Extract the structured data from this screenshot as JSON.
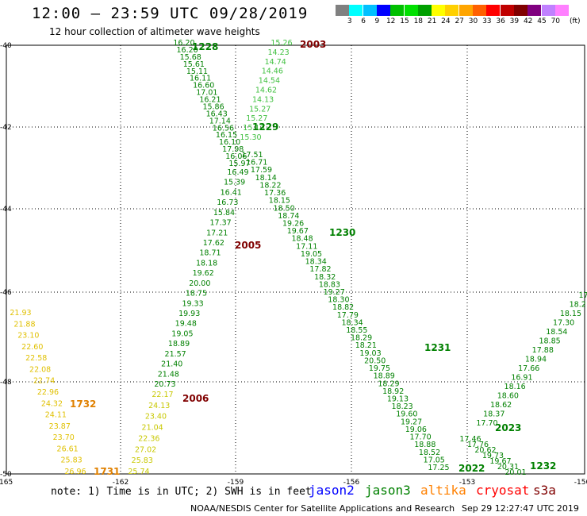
{
  "title": "12:00 – 23:59 UTC 09/28/2019",
  "subtitle": "12 hour collection of altimeter wave heights",
  "legend": {
    "unit": "(ft)",
    "colors": [
      "#808080",
      "#00ffff",
      "#00c0ff",
      "#0000ff",
      "#00c000",
      "#00e000",
      "#00a000",
      "#ffff00",
      "#ffd000",
      "#ffa500",
      "#ff6000",
      "#ff0000",
      "#c00000",
      "#800000",
      "#800080",
      "#c080ff",
      "#ff80ff"
    ],
    "labels": [
      "3",
      "6",
      "9",
      "12",
      "15",
      "18",
      "21",
      "24",
      "27",
      "30",
      "33",
      "36",
      "39",
      "42",
      "45",
      "70"
    ]
  },
  "axes": {
    "lat_labels": [
      "-40",
      "-42",
      "-44",
      "-46",
      "-48",
      "-50"
    ],
    "lon_labels": [
      "-165",
      "-162",
      "-159",
      "-156",
      "-153",
      "-150"
    ]
  },
  "passes": [
    {
      "id": "1228",
      "color": "#008000",
      "label_color": "#008000",
      "values": [
        "16.20",
        "16.20",
        "15.68",
        "15.61",
        "15.11",
        "16.11",
        "16.60",
        "17.01",
        "16.21",
        "15.86",
        "16.43",
        "17.14",
        "16.56",
        "16.15",
        "16.10",
        "17.98",
        "16.06",
        "15.97"
      ]
    },
    {
      "id": "2003",
      "color": "#40c040",
      "label_color": "#800000",
      "values": [
        "15.26",
        "14.23",
        "14.74",
        "14.46",
        "14.54",
        "14.62",
        "14.13",
        "15.27",
        "15.27",
        "15.13",
        "15.30"
      ]
    },
    {
      "id": "1229",
      "color": "#008000",
      "label_color": "#008000",
      "values": [
        "17.51",
        "16.71",
        "17.59",
        "18.14",
        "18.22",
        "17.36",
        "18.15",
        "18.50",
        "18.74",
        "19.26",
        "19.67",
        "18.48",
        "17.11",
        "19.05",
        "18.34",
        "17.82",
        "18.32",
        "18.83",
        "19.27",
        "18.30",
        "18.82",
        "17.79",
        "18.34",
        "18.55",
        "18.29",
        "18.21",
        "19.03",
        "20.50",
        "19.75",
        "18.89",
        "18.29",
        "18.92",
        "19.13",
        "18.23",
        "19.60",
        "19.27",
        "19.06",
        "17.70",
        "18.88",
        "18.52",
        "17.05",
        "17.25"
      ]
    },
    {
      "id": "1230",
      "color": "#008000",
      "label_color": "#008000",
      "values": []
    },
    {
      "id": "1231",
      "color": "#008000",
      "label_color": "#008000",
      "values": []
    },
    {
      "id": "2005",
      "color": "#008000",
      "label_color": "#800000",
      "values": [
        "16.49",
        "15.39",
        "16.41",
        "16.73",
        "15.84",
        "17.37",
        "17.21",
        "17.62",
        "18.71",
        "18.18",
        "19.62",
        "20.00",
        "18.75",
        "19.33",
        "19.93",
        "19.48",
        "19.05",
        "18.89",
        "21.57",
        "21.40",
        "21.48",
        "20.73"
      ]
    },
    {
      "id": "2006",
      "color": "#c8c800",
      "label_color": "#800000",
      "values": [
        "22.17",
        "24.13",
        "23.40",
        "21.04",
        "22.36",
        "27.02",
        "25.83",
        "25.74"
      ]
    },
    {
      "id": "1732",
      "color": "#e0c000",
      "label_color": "#e08000",
      "values": [
        "21.93",
        "21.88",
        "23.10",
        "22.60",
        "22.58",
        "22.08",
        "22.74",
        "22.96",
        "24.32",
        "24.11",
        "23.87",
        "23.70",
        "26.61",
        "25.83",
        "26.96"
      ]
    },
    {
      "id": "1731",
      "color": "#e0c000",
      "label_color": "#e08000",
      "values": []
    },
    {
      "id": "2022",
      "color": "#008000",
      "label_color": "#008000",
      "values": []
    },
    {
      "id": "2023",
      "color": "#008000",
      "label_color": "#008000",
      "values": [
        "17.46",
        "17.76",
        "20.62",
        "19.73",
        "19.67",
        "20.31",
        "20.01"
      ]
    },
    {
      "id": "1232",
      "color": "#008000",
      "label_color": "#008000",
      "values": [
        "17.",
        "18.2",
        "18.15",
        "17.30",
        "18.54",
        "18.85",
        "17.88",
        "18.94",
        "17.66",
        "16.91",
        "18.16",
        "18.60",
        "18.62",
        "18.37",
        "17.70"
      ]
    }
  ],
  "note": "note: 1) Time is in UTC; 2) SWH is in feet",
  "satellites": [
    {
      "name": "jason2",
      "color": "#0000ff"
    },
    {
      "name": "jason3",
      "color": "#008000"
    },
    {
      "name": "altika",
      "color": "#ff8000"
    },
    {
      "name": "cryosat",
      "color": "#ff0000"
    },
    {
      "name": "s3a",
      "color": "#800000"
    }
  ],
  "credit": "NOAA/NESDIS Center for Satellite Applications and Research",
  "timestamp": "Sep 29 12:27:47 UTC 2019"
}
